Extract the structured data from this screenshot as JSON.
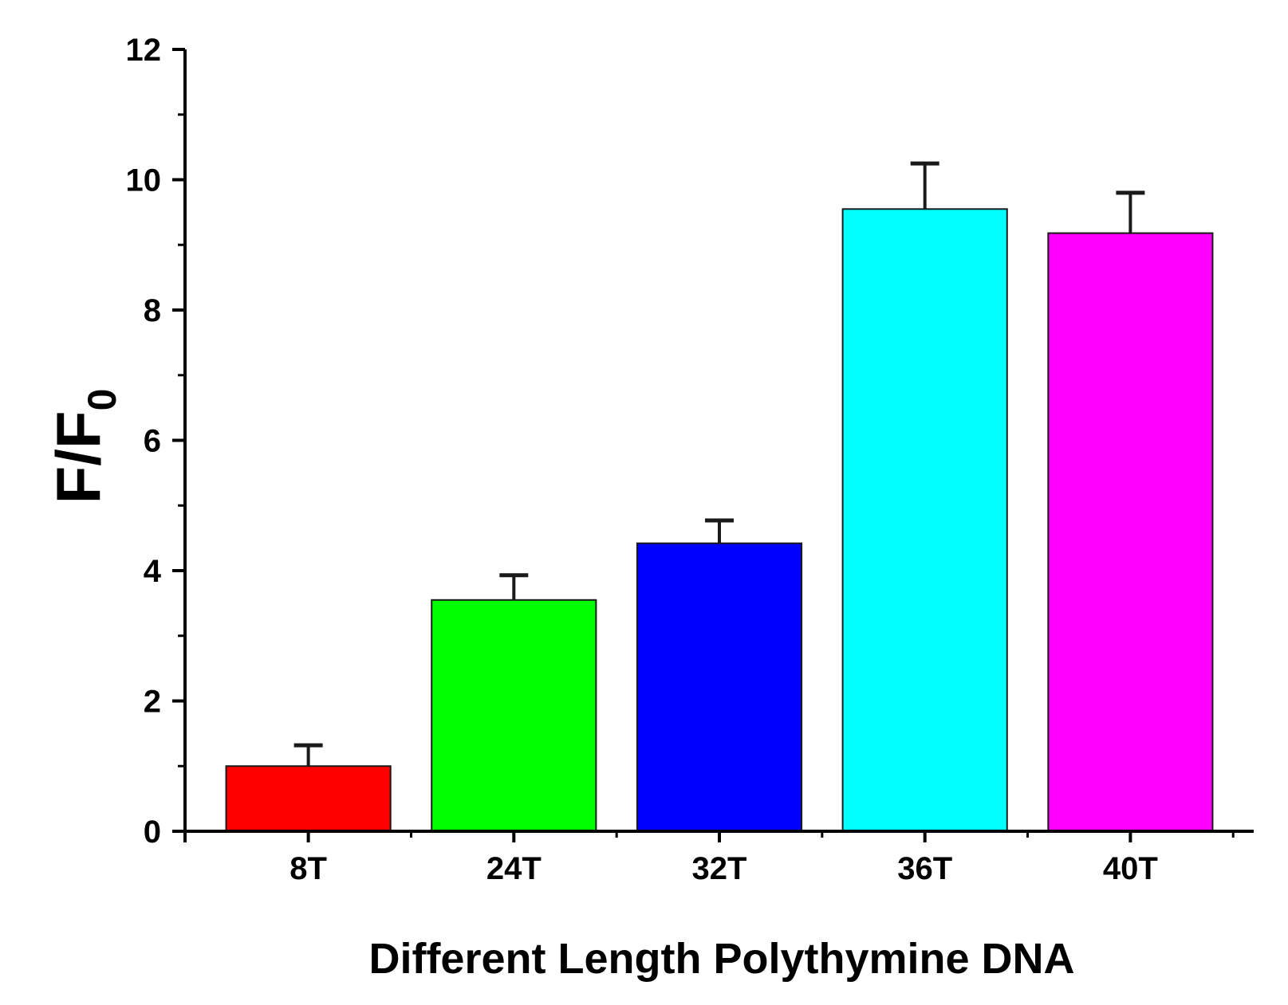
{
  "chart_data": {
    "type": "bar",
    "title": "",
    "xlabel": "Different Length Polythymine DNA",
    "ylabel": {
      "main": "F/F",
      "subscript": "0"
    },
    "categories": [
      "8T",
      "24T",
      "32T",
      "36T",
      "40T"
    ],
    "values": [
      1.0,
      3.55,
      4.42,
      9.55,
      9.18
    ],
    "errors": [
      0.32,
      0.38,
      0.35,
      0.7,
      0.62
    ],
    "colors": [
      "#ff0000",
      "#00ff00",
      "#0000ff",
      "#00ffff",
      "#ff00ff"
    ],
    "ylim": [
      0,
      12
    ],
    "yticks": [
      0,
      2,
      4,
      6,
      8,
      10,
      12
    ],
    "grid": false,
    "legend": "none"
  }
}
